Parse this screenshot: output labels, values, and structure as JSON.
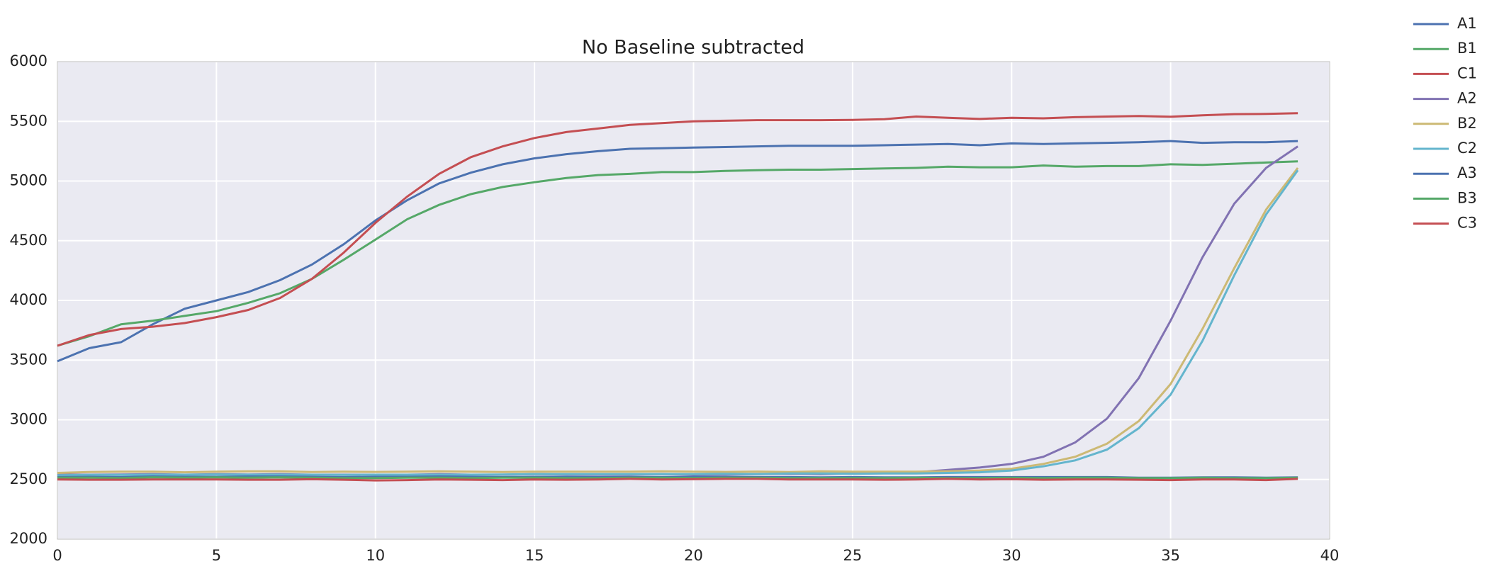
{
  "chart_data": {
    "type": "line",
    "title": "No Baseline subtracted",
    "x": [
      0,
      1,
      2,
      3,
      4,
      5,
      6,
      7,
      8,
      9,
      10,
      11,
      12,
      13,
      14,
      15,
      16,
      17,
      18,
      19,
      20,
      21,
      22,
      23,
      24,
      25,
      26,
      27,
      28,
      29,
      30,
      31,
      32,
      33,
      34,
      35,
      36,
      37,
      38,
      39
    ],
    "xlim": [
      0,
      40
    ],
    "xticks": [
      0,
      5,
      10,
      15,
      20,
      25,
      30,
      35,
      40
    ],
    "ylim": [
      2000,
      6000
    ],
    "yticks": [
      2000,
      2500,
      3000,
      3500,
      4000,
      4500,
      5000,
      5500,
      6000
    ],
    "grid": true,
    "legend": "outside-upper-right",
    "series": [
      {
        "name": "A1",
        "color": "#4c72b0",
        "values": [
          3490,
          3600,
          3650,
          3800,
          3930,
          4000,
          4070,
          4170,
          4300,
          4470,
          4670,
          4840,
          4980,
          5070,
          5140,
          5190,
          5225,
          5250,
          5270,
          5275,
          5280,
          5285,
          5290,
          5295,
          5295,
          5295,
          5300,
          5305,
          5310,
          5300,
          5315,
          5310,
          5315,
          5320,
          5325,
          5335,
          5320,
          5325,
          5325,
          5335
        ]
      },
      {
        "name": "B1",
        "color": "#55a868",
        "values": [
          3620,
          3700,
          3800,
          3830,
          3870,
          3910,
          3980,
          4060,
          4180,
          4340,
          4510,
          4680,
          4800,
          4890,
          4950,
          4990,
          5025,
          5050,
          5060,
          5075,
          5075,
          5085,
          5090,
          5095,
          5095,
          5100,
          5105,
          5110,
          5120,
          5115,
          5115,
          5130,
          5120,
          5125,
          5125,
          5140,
          5135,
          5145,
          5155,
          5165
        ]
      },
      {
        "name": "C1",
        "color": "#c44e52",
        "values": [
          3620,
          3710,
          3760,
          3780,
          3810,
          3860,
          3920,
          4020,
          4180,
          4400,
          4650,
          4870,
          5060,
          5200,
          5290,
          5360,
          5410,
          5440,
          5470,
          5485,
          5500,
          5505,
          5510,
          5510,
          5510,
          5512,
          5518,
          5540,
          5530,
          5520,
          5530,
          5525,
          5535,
          5540,
          5545,
          5538,
          5550,
          5560,
          5562,
          5568
        ]
      },
      {
        "name": "A2",
        "color": "#8172b2",
        "values": [
          2540,
          2540,
          2542,
          2545,
          2540,
          2545,
          2542,
          2545,
          2540,
          2540,
          2538,
          2540,
          2545,
          2540,
          2540,
          2545,
          2542,
          2540,
          2542,
          2545,
          2540,
          2542,
          2545,
          2548,
          2545,
          2550,
          2555,
          2560,
          2580,
          2600,
          2630,
          2690,
          2810,
          3010,
          3350,
          3830,
          4360,
          4810,
          5110,
          5290
        ]
      },
      {
        "name": "B2",
        "color": "#ccb974",
        "values": [
          2555,
          2562,
          2565,
          2565,
          2560,
          2565,
          2568,
          2568,
          2562,
          2565,
          2563,
          2565,
          2568,
          2565,
          2562,
          2565,
          2565,
          2565,
          2565,
          2568,
          2565,
          2563,
          2566,
          2562,
          2568,
          2565,
          2565,
          2565,
          2568,
          2575,
          2590,
          2630,
          2690,
          2800,
          2990,
          3300,
          3760,
          4270,
          4760,
          5110
        ]
      },
      {
        "name": "C2",
        "color": "#64b5cd",
        "values": [
          2535,
          2538,
          2538,
          2540,
          2540,
          2542,
          2540,
          2540,
          2540,
          2538,
          2540,
          2540,
          2540,
          2540,
          2542,
          2545,
          2545,
          2545,
          2545,
          2545,
          2545,
          2548,
          2545,
          2550,
          2550,
          2548,
          2550,
          2550,
          2555,
          2560,
          2575,
          2610,
          2660,
          2750,
          2930,
          3210,
          3660,
          4210,
          4720,
          5090
        ]
      },
      {
        "name": "A3",
        "color": "#4c72b0",
        "values": [
          2520,
          2522,
          2520,
          2525,
          2522,
          2522,
          2525,
          2525,
          2522,
          2520,
          2522,
          2522,
          2525,
          2522,
          2520,
          2522,
          2522,
          2520,
          2522,
          2520,
          2522,
          2522,
          2520,
          2520,
          2518,
          2520,
          2518,
          2518,
          2520,
          2520,
          2520,
          2520,
          2520,
          2520,
          2515,
          2515,
          2518,
          2518,
          2515,
          2518
        ]
      },
      {
        "name": "B3",
        "color": "#55a868",
        "values": [
          2515,
          2515,
          2512,
          2518,
          2515,
          2518,
          2515,
          2518,
          2515,
          2512,
          2512,
          2515,
          2515,
          2512,
          2515,
          2515,
          2512,
          2512,
          2515,
          2515,
          2512,
          2515,
          2515,
          2512,
          2512,
          2512,
          2512,
          2515,
          2512,
          2512,
          2515,
          2512,
          2515,
          2515,
          2512,
          2512,
          2515,
          2512,
          2512,
          2515
        ]
      },
      {
        "name": "C3",
        "color": "#c44e52",
        "values": [
          2500,
          2498,
          2498,
          2500,
          2500,
          2500,
          2498,
          2498,
          2502,
          2498,
          2492,
          2495,
          2500,
          2498,
          2495,
          2500,
          2498,
          2500,
          2505,
          2500,
          2502,
          2505,
          2505,
          2500,
          2500,
          2500,
          2498,
          2500,
          2505,
          2500,
          2502,
          2498,
          2500,
          2500,
          2498,
          2495,
          2500,
          2500,
          2495,
          2505
        ]
      }
    ]
  }
}
